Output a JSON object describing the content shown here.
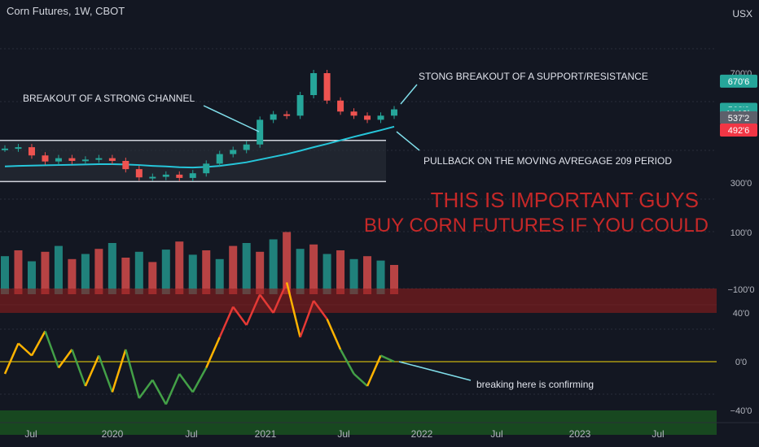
{
  "header": {
    "title": "Corn Futures, 1W, CBOT",
    "currency": "USX"
  },
  "chart_data": [
    {
      "type": "candlestick",
      "panel": "price",
      "x": [
        "2019-06-01",
        "2019-07-01",
        "2019-08-01",
        "2019-09-01",
        "2019-10-01",
        "2019-11-01",
        "2019-12-01",
        "2020-01-01",
        "2020-02-01",
        "2020-03-01",
        "2020-04-01",
        "2020-05-01",
        "2020-06-01",
        "2020-07-01",
        "2020-08-01",
        "2020-09-01",
        "2020-10-01",
        "2020-11-01",
        "2020-12-01",
        "2021-01-01",
        "2021-02-01",
        "2021-03-01",
        "2021-04-01",
        "2021-05-01",
        "2021-06-01",
        "2021-07-01",
        "2021-08-01",
        "2021-09-01",
        "2021-10-01",
        "2021-11-01"
      ],
      "close": [
        425,
        430,
        400,
        378,
        390,
        380,
        385,
        390,
        380,
        350,
        320,
        322,
        330,
        318,
        335,
        370,
        405,
        420,
        440,
        530,
        550,
        545,
        620,
        700,
        600,
        560,
        545,
        530,
        545,
        568
      ],
      "yticks": [
        {
          "value": 700,
          "label": "700'0"
        },
        {
          "value": 300,
          "label": "300'0"
        }
      ],
      "price_labels": [
        {
          "value": 670.75,
          "label": "670'6",
          "color": "#26a69a"
        },
        {
          "value": 568,
          "label": "568'0",
          "color": "#26a69a"
        },
        {
          "value": 553,
          "label": "4d 19h",
          "color": "#26a69a"
        },
        {
          "value": 537.25,
          "label": "537'2",
          "color": "#5d606b"
        },
        {
          "value": 492.75,
          "label": "492'6",
          "color": "#f23645"
        }
      ],
      "moving_average": {
        "period": 209,
        "values": [
          360,
          362,
          363,
          364,
          365,
          366,
          367,
          368,
          368,
          367,
          365,
          362,
          360,
          357,
          356,
          358,
          362,
          368,
          375,
          385,
          395,
          405,
          417,
          430,
          442,
          455,
          468,
          480,
          492,
          505
        ]
      },
      "channel": {
        "upper": 455,
        "lower": 305
      },
      "annotations": [
        "BREAKOUT OF A STRONG CHANNEL",
        "STONG BREAKOUT OF A SUPPORT/RESISTANCE",
        "PULLBACK ON THE MOVING AVREGAGE 209 PERIOD"
      ],
      "headline": [
        "THIS IS IMPORTANT GUYS",
        "BUY CORN FUTURES IF YOU COULD"
      ],
      "headline_color": "#c62828"
    },
    {
      "type": "bar",
      "panel": "volume",
      "yticks": [
        {
          "value": 100,
          "label": "100'0"
        },
        {
          "value": -100,
          "label": "−100'0"
        }
      ],
      "values": [
        52,
        60,
        45,
        58,
        66,
        48,
        55,
        62,
        70,
        50,
        58,
        44,
        61,
        72,
        54,
        60,
        48,
        66,
        70,
        58,
        75,
        85,
        62,
        68,
        55,
        60,
        48,
        52,
        46,
        40
      ],
      "colors": [
        "#26a69a",
        "#ef5350"
      ]
    },
    {
      "type": "line",
      "panel": "oscillator",
      "yticks": [
        {
          "value": 40,
          "label": "40'0"
        },
        {
          "value": 0,
          "label": "0'0"
        },
        {
          "value": -40,
          "label": "−40'0"
        }
      ],
      "zero_line_color": "#f5d90a",
      "upper_zone": [
        40,
        60
      ],
      "lower_zone": [
        -60,
        -40
      ],
      "values": [
        -10,
        15,
        5,
        25,
        -5,
        10,
        -20,
        5,
        -25,
        10,
        -30,
        -15,
        -35,
        -10,
        -25,
        -5,
        20,
        45,
        30,
        55,
        40,
        65,
        20,
        50,
        35,
        10,
        -10,
        -20,
        5,
        0
      ],
      "annotation": "breaking here is confirming"
    }
  ],
  "x_axis": {
    "labels": [
      "Jul",
      "2020",
      "Jul",
      "2021",
      "Jul",
      "2022",
      "Jul",
      "2023",
      "Jul"
    ]
  }
}
